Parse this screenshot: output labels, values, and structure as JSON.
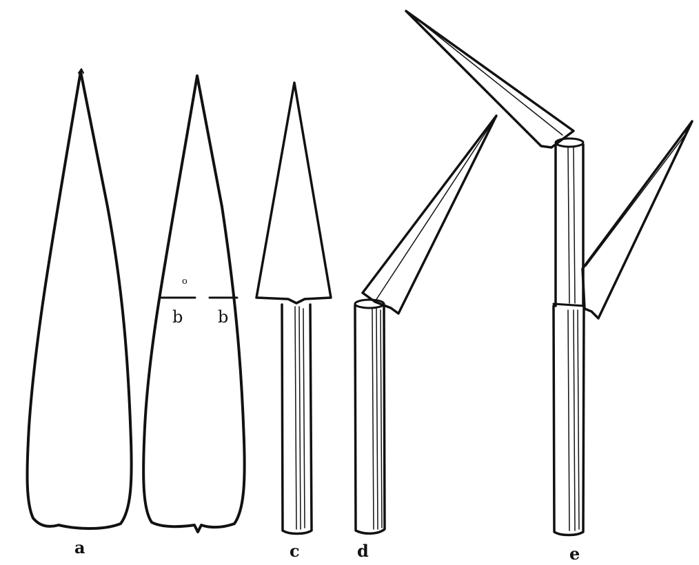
{
  "figure": {
    "labels": {
      "a": "a",
      "b_left": "b",
      "b_right": "b",
      "mark_o": "o",
      "c": "c",
      "d": "d",
      "e": "e"
    },
    "ink_color": "#111111",
    "background": "#ffffff"
  }
}
